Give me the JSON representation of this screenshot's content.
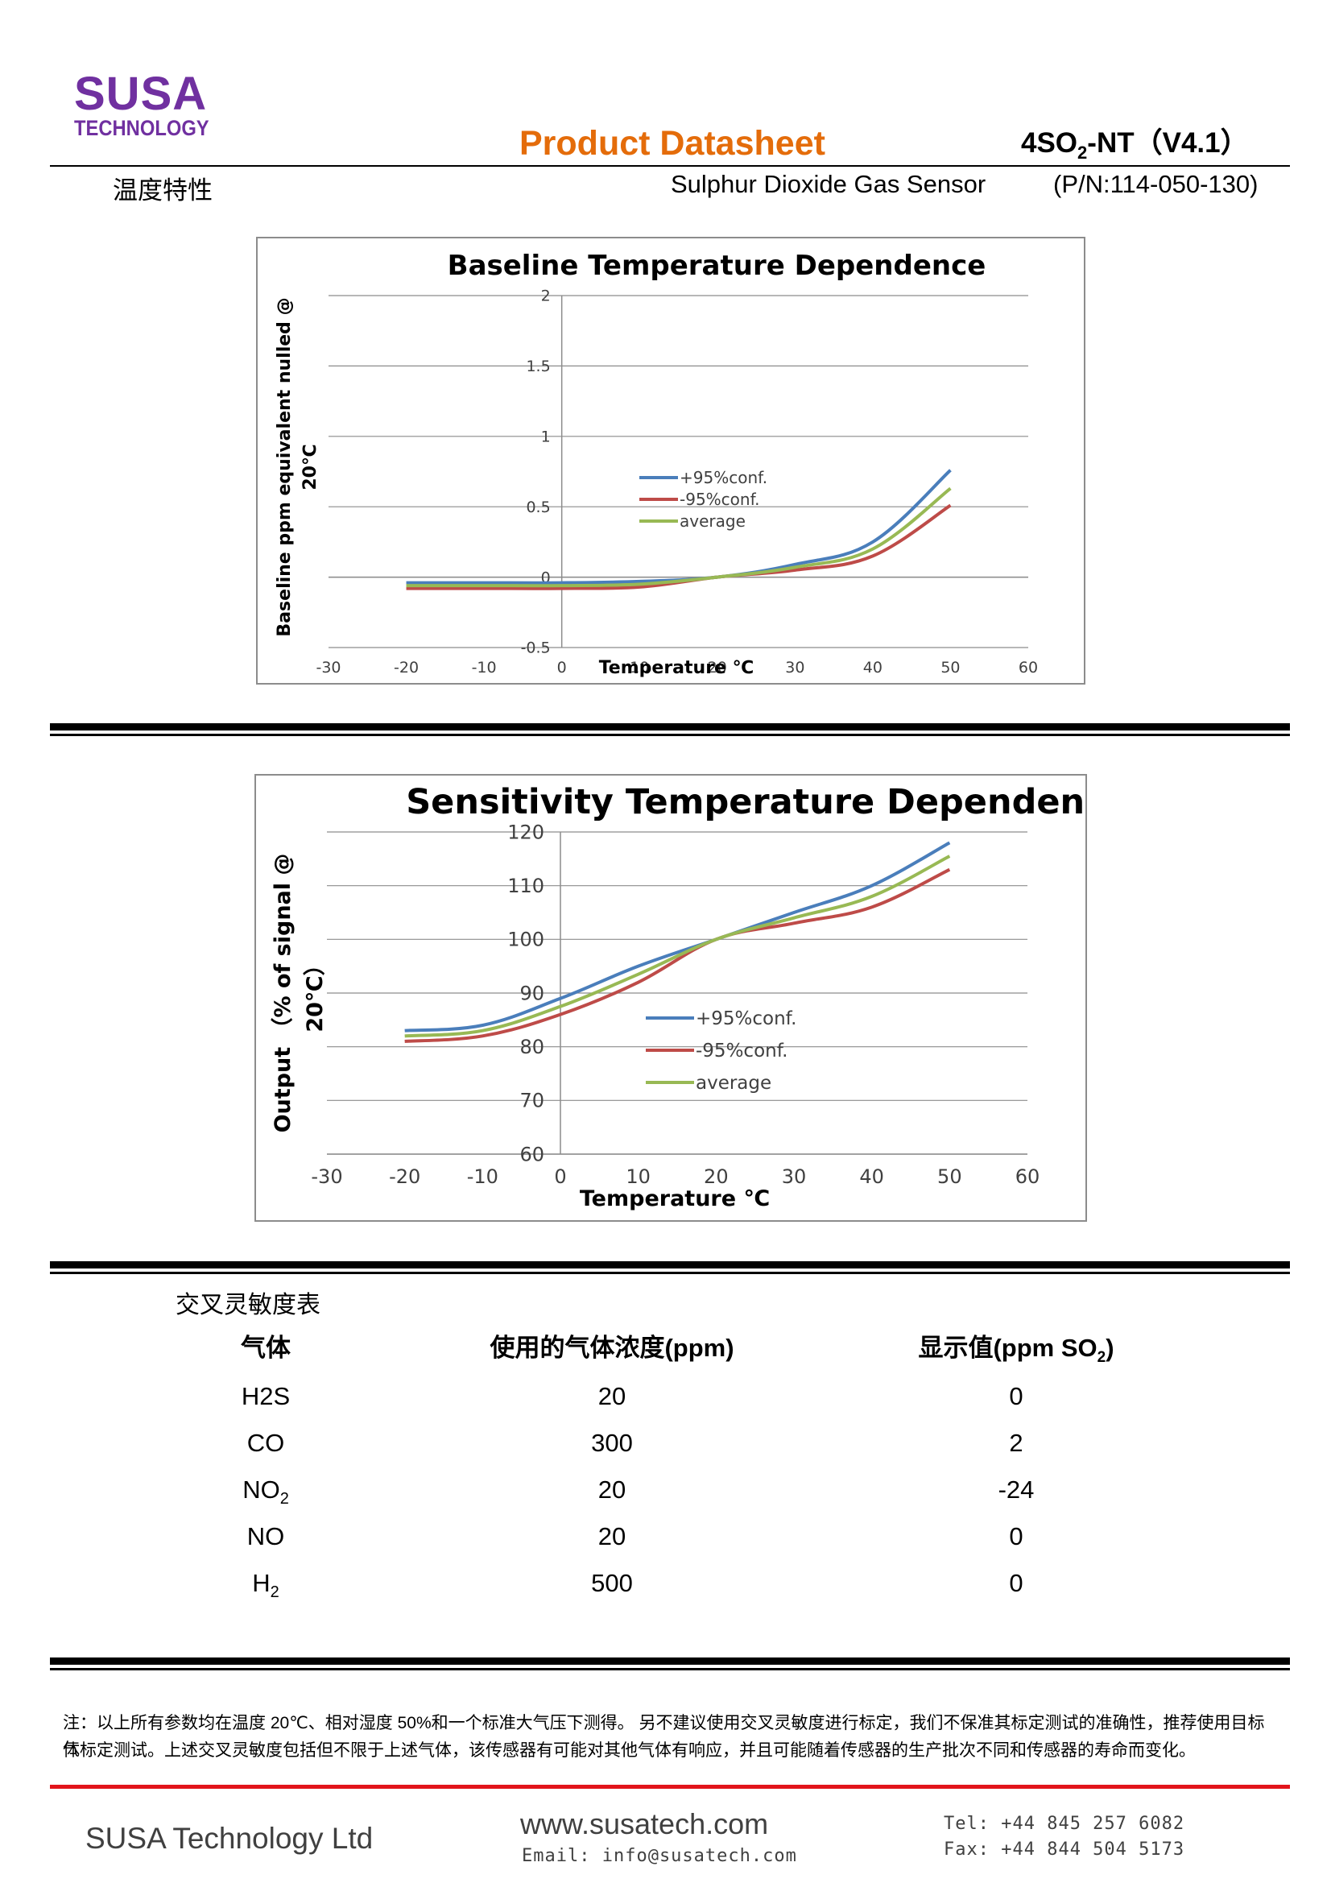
{
  "header": {
    "logo_main": "SUSA",
    "logo_sub": "TECHNOLOGY",
    "doc_title": "Product Datasheet",
    "model_prefix": "4SO",
    "model_sub": "2",
    "model_suffix": "-NT（V4.1）",
    "section_title": "温度特性",
    "subtitle": "Sulphur Dioxide Gas Sensor",
    "part_number": "(P/N:114-050-130)"
  },
  "colors": {
    "brand": "#7030a0",
    "title": "#e46c0a",
    "plus95": "#4a7ebb",
    "minus95": "#be4b48",
    "average": "#98b954",
    "footer_rule": "#e2141b"
  },
  "chart_data": [
    {
      "type": "line",
      "title": "Baseline Temperature Dependence",
      "xlabel": "Temperature ℃",
      "ylabel_line1": "Baseline ppm equivalent nulled @",
      "ylabel_line2": "20℃",
      "xlim": [
        -30,
        60
      ],
      "ylim": [
        -0.5,
        2
      ],
      "xticks": [
        -30,
        -20,
        -10,
        0,
        10,
        20,
        30,
        40,
        50,
        60
      ],
      "yticks": [
        -0.5,
        0,
        0.5,
        1,
        1.5,
        2
      ],
      "ytick_labels": [
        "-0.5",
        "0",
        "0.5",
        "1",
        "1.5",
        "2"
      ],
      "grid": true,
      "legend_position": "center",
      "x": [
        -20,
        -10,
        0,
        10,
        20,
        30,
        40,
        50
      ],
      "series": [
        {
          "name": "+95%conf.",
          "color": "#4a7ebb",
          "values": [
            -0.04,
            -0.04,
            -0.04,
            -0.03,
            0.0,
            0.09,
            0.25,
            0.76
          ]
        },
        {
          "name": "-95%conf.",
          "color": "#be4b48",
          "values": [
            -0.08,
            -0.08,
            -0.08,
            -0.07,
            0.0,
            0.05,
            0.15,
            0.51
          ]
        },
        {
          "name": "average",
          "color": "#98b954",
          "values": [
            -0.06,
            -0.06,
            -0.06,
            -0.05,
            0.0,
            0.07,
            0.2,
            0.63
          ]
        }
      ]
    },
    {
      "type": "line",
      "title": "Sensitivity Temperature Dependence",
      "xlabel": "Temperature ℃",
      "ylabel_line1": "Output （% of signal @",
      "ylabel_line2": "20℃）",
      "xlim": [
        -30,
        60
      ],
      "ylim": [
        60,
        120
      ],
      "xticks": [
        -30,
        -20,
        -10,
        0,
        10,
        20,
        30,
        40,
        50,
        60
      ],
      "yticks": [
        60,
        70,
        80,
        90,
        100,
        110,
        120
      ],
      "ytick_labels": [
        "60",
        "70",
        "80",
        "90",
        "100",
        "110",
        "120"
      ],
      "grid": true,
      "legend_position": "center",
      "x": [
        -20,
        -10,
        0,
        10,
        20,
        30,
        40,
        50
      ],
      "series": [
        {
          "name": "+95%conf.",
          "color": "#4a7ebb",
          "values": [
            83,
            84,
            89,
            95,
            100,
            105,
            110,
            118
          ]
        },
        {
          "name": "-95%conf.",
          "color": "#be4b48",
          "values": [
            81,
            82,
            86,
            92,
            100,
            103,
            106,
            113
          ]
        },
        {
          "name": "average",
          "color": "#98b954",
          "values": [
            82,
            83,
            87.5,
            93.5,
            100,
            104,
            108,
            115.5
          ]
        }
      ]
    }
  ],
  "cross_table": {
    "caption": "交叉灵敏度表",
    "col_gas": "气体",
    "col_conc": "使用的气体浓度(ppm)",
    "col_reading_prefix": "显示值(ppm SO",
    "col_reading_sub": "2",
    "col_reading_suffix": ")",
    "rows": [
      {
        "gas": "H2S",
        "gas_sub": "",
        "conc": "20",
        "reading": "0"
      },
      {
        "gas": "CO",
        "gas_sub": "",
        "conc": "300",
        "reading": "2"
      },
      {
        "gas": "NO",
        "gas_sub": "2",
        "conc": "20",
        "reading": "-24"
      },
      {
        "gas": "NO",
        "gas_sub": "",
        "conc": "20",
        "reading": "0"
      },
      {
        "gas": "H",
        "gas_sub": "2",
        "conc": "500",
        "reading": "0"
      }
    ]
  },
  "note": {
    "line1": "注：以上所有参数均在温度 20℃、相对湿度 50%和一个标准大气压下测得。 另不建议使用交叉灵敏度进行标定，我们不保准其标定测试的准确性，推荐使用目标气",
    "line2": "体标定测试。上述交叉灵敏度包括但不限于上述气体，该传感器有可能对其他气体有响应，并且可能随着传感器的生产批次不同和传感器的寿命而变化。"
  },
  "footer": {
    "company": "SUSA Technology Ltd",
    "website": "www.susatech.com",
    "email": "Email: info@susatech.com",
    "tel": "Tel: +44 845 257 6082",
    "fax": "Fax: +44 844 504 5173"
  }
}
